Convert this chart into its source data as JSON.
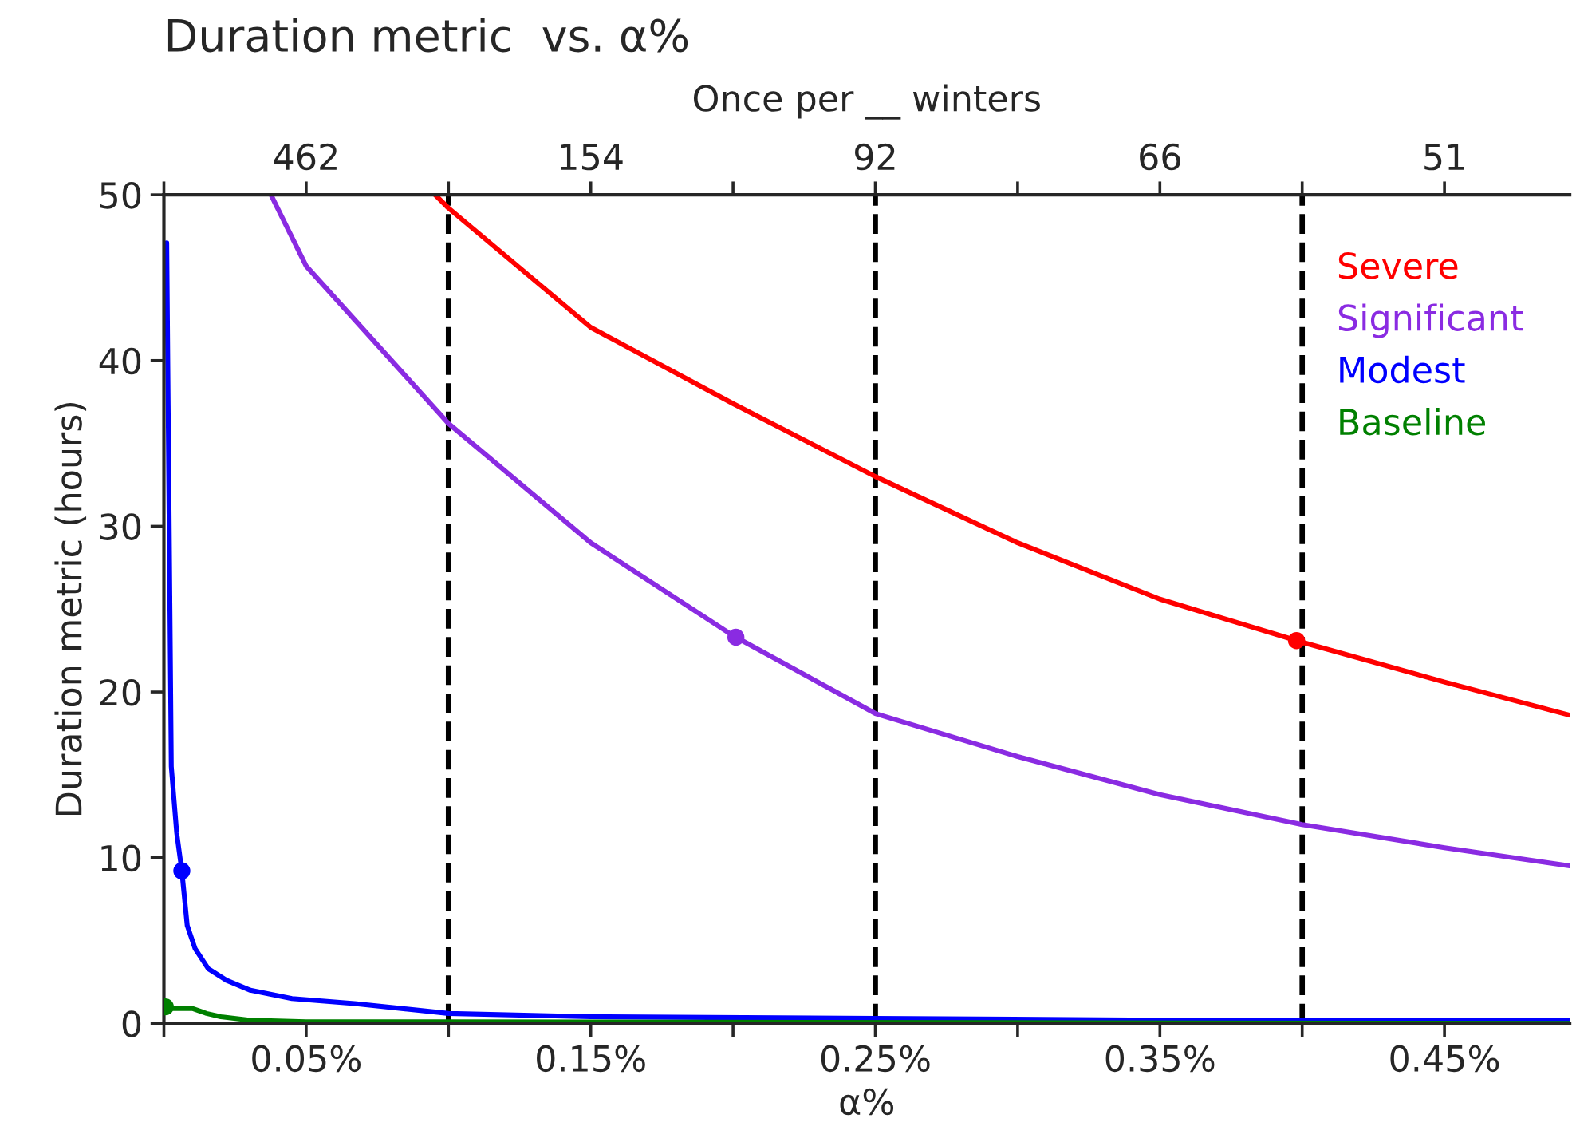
{
  "chart_data": {
    "type": "line",
    "title": "Duration metric  vs. α%",
    "xlabel": "α%",
    "ylabel": "Duration metric (hours)",
    "x2label": "Once per __ winters",
    "xlim": [
      0,
      0.494
    ],
    "ylim": [
      0,
      50
    ],
    "xticks": [
      {
        "value": 0,
        "label": null
      },
      {
        "value": 0.05,
        "label": "0.05%"
      },
      {
        "value": 0.1,
        "label": null
      },
      {
        "value": 0.15,
        "label": "0.15%"
      },
      {
        "value": 0.2,
        "label": null
      },
      {
        "value": 0.25,
        "label": "0.25%"
      },
      {
        "value": 0.3,
        "label": null
      },
      {
        "value": 0.35,
        "label": "0.35%"
      },
      {
        "value": 0.4,
        "label": null
      },
      {
        "value": 0.45,
        "label": "0.45%"
      }
    ],
    "annotations": [
      {
        "text": "462",
        "x": 0.05
      },
      {
        "text": "154",
        "x": 0.15
      },
      {
        "text": "92",
        "x": 0.25
      },
      {
        "text": "66",
        "x": 0.35
      },
      {
        "text": "51",
        "x": 0.45
      }
    ],
    "yticks": [
      0,
      10,
      20,
      30,
      40,
      50
    ],
    "series": [
      {
        "name": "Severe",
        "color": "#ff0000",
        "x": [
          0.0953,
          0.1,
          0.15,
          0.2,
          0.25,
          0.3,
          0.35,
          0.4,
          0.45,
          0.494
        ],
        "values": [
          50,
          49.2,
          42.0,
          37.4,
          33.0,
          29.0,
          25.6,
          23.0,
          20.6,
          18.6
        ]
      },
      {
        "name": "Significant",
        "color": "#8a2be2",
        "x": [
          0.0379,
          0.05,
          0.1,
          0.15,
          0.2,
          0.25,
          0.3,
          0.35,
          0.4,
          0.45,
          0.494
        ],
        "values": [
          49.9,
          45.7,
          36.2,
          29.0,
          23.4,
          18.7,
          16.1,
          13.8,
          12.0,
          10.6,
          9.5
        ]
      },
      {
        "name": "Modest",
        "color": "#0000ff",
        "x": [
          0.001,
          0.0026,
          0.0045,
          0.0063,
          0.0082,
          0.011,
          0.0156,
          0.022,
          0.0304,
          0.045,
          0.067,
          0.1,
          0.15,
          0.25,
          0.35,
          0.494
        ],
        "values": [
          47.1,
          15.5,
          11.5,
          9.2,
          5.9,
          4.5,
          3.3,
          2.6,
          2.0,
          1.5,
          1.2,
          0.6,
          0.4,
          0.3,
          0.2,
          0.2
        ]
      },
      {
        "name": "Baseline",
        "color": "#008000",
        "x": [
          0.0005,
          0.003,
          0.01,
          0.015,
          0.02,
          0.03,
          0.05,
          0.1,
          0.494
        ],
        "values": [
          1.0,
          0.9,
          0.9,
          0.6,
          0.4,
          0.2,
          0.1,
          0.1,
          0.0
        ]
      },
      {
        "type": "scatter",
        "marker": "circle",
        "color": "#ff0000",
        "x": [
          0.398
        ],
        "values": [
          23.1
        ]
      },
      {
        "type": "scatter",
        "marker": "circle",
        "color": "#8a2be2",
        "x": [
          0.201
        ],
        "values": [
          23.3
        ]
      },
      {
        "type": "scatter",
        "marker": "circle",
        "color": "#0000ff",
        "x": [
          0.0063
        ],
        "values": [
          9.2
        ]
      },
      {
        "type": "scatter",
        "marker": "circle",
        "color": "#008000",
        "x": [
          0.0005
        ],
        "values": [
          1.0
        ]
      }
    ],
    "ref_lines": [
      {
        "axis": "x",
        "value": 0.1,
        "color": "#000000",
        "line_style": "dashed"
      },
      {
        "axis": "x",
        "value": 0.25,
        "color": "#000000",
        "line_style": "dashed"
      },
      {
        "axis": "x",
        "value": 0.4,
        "color": "#000000",
        "line_style": "dashed"
      }
    ],
    "legend": "top right",
    "grid": false,
    "marker": "none",
    "line_style": "solid"
  }
}
